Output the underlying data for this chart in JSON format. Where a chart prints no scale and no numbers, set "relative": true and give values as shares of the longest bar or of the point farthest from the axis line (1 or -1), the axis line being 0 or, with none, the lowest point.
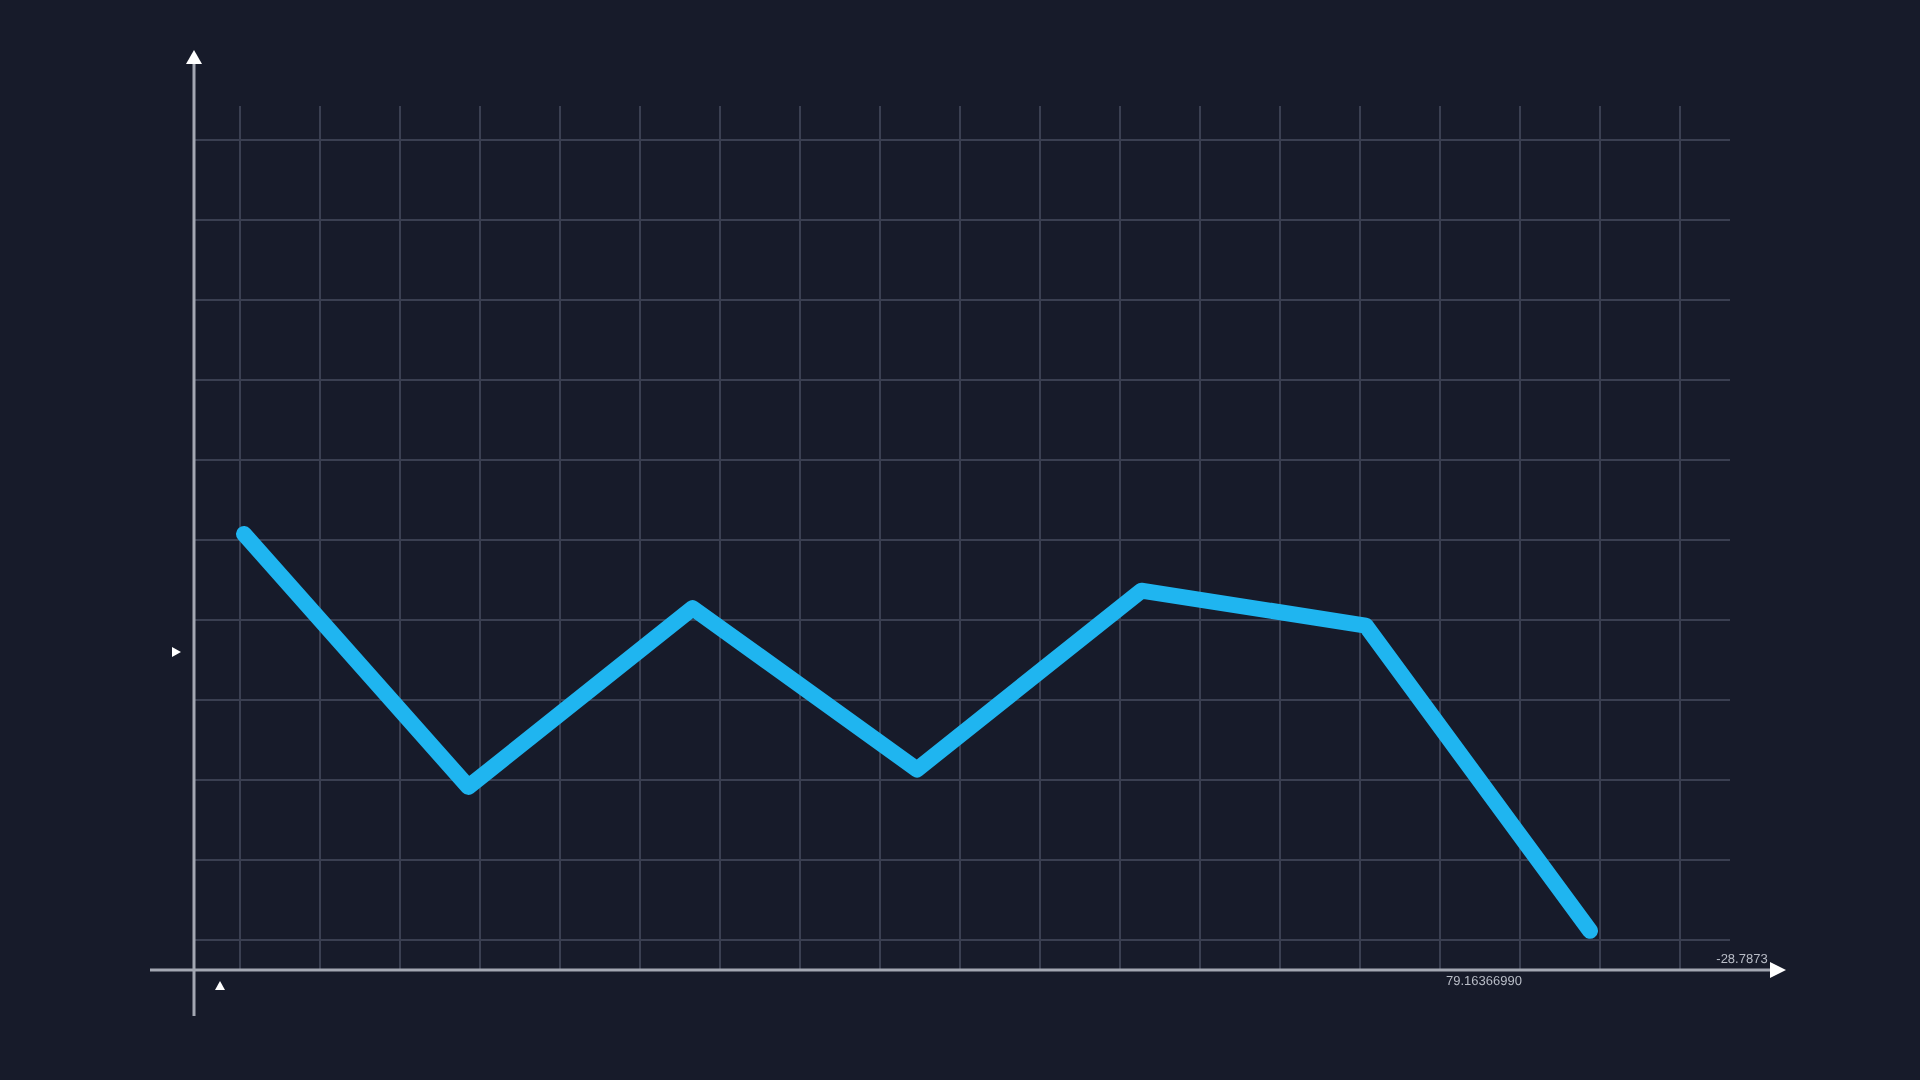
{
  "chart_data": {
    "type": "line",
    "relative": true,
    "categories": [
      null,
      null,
      null,
      null,
      null,
      null,
      null
    ],
    "series": [
      {
        "color": "#1fb5f0",
        "values": [
          1,
          0.42,
          0.83,
          0.46,
          0.87,
          0.79,
          0.09
        ]
      }
    ],
    "grid": true,
    "tick_labels": false,
    "annotations": [
      "79.16366990",
      "-28.7873"
    ]
  }
}
